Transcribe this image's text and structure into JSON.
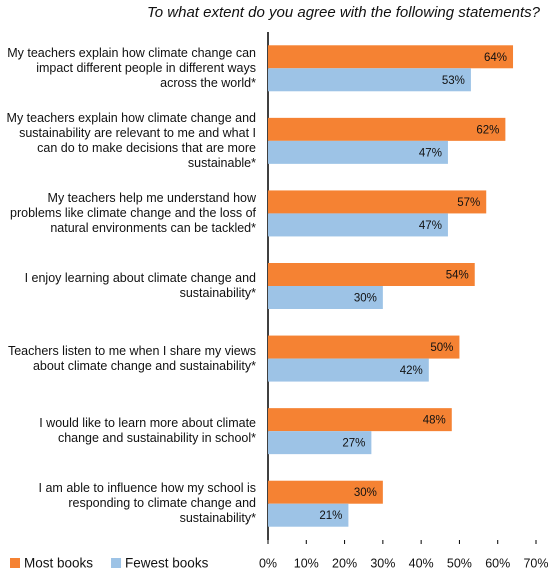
{
  "chart_data": {
    "type": "hbar",
    "title": "To what extent do you agree with the following statements?",
    "categories": [
      "My teachers explain how climate change can impact different people in different ways across the world*",
      "My teachers explain how climate change and sustainability are relevant to me and what I can do to make decisions that are more sustainable*",
      "My teachers help me understand how problems like climate change and the loss of natural environments can be tackled*",
      "I enjoy learning about climate change and sustainability*",
      "Teachers listen to me when I share my views about climate change and sustainability*",
      "I would like to learn more about climate change and sustainability in school*",
      "I am able to influence how my school is responding to climate change and sustainability*"
    ],
    "series": [
      {
        "name": "Most books",
        "color": "#f58233",
        "values": [
          64,
          62,
          57,
          54,
          50,
          48,
          30
        ],
        "value_labels": [
          "64%",
          "62%",
          "57%",
          "54%",
          "50%",
          "48%",
          "30%"
        ]
      },
      {
        "name": "Fewest books",
        "color": "#9dc3e6",
        "values": [
          53,
          47,
          47,
          30,
          42,
          27,
          21
        ],
        "value_labels": [
          "53%",
          "47%",
          "47%",
          "30%",
          "42%",
          "27%",
          "21%"
        ]
      }
    ],
    "xlim": [
      0,
      70
    ],
    "xticks": [
      {
        "value": 0,
        "label": "0%"
      },
      {
        "value": 10,
        "label": "10%"
      },
      {
        "value": 20,
        "label": "20%"
      },
      {
        "value": 30,
        "label": "30%"
      },
      {
        "value": 40,
        "label": "40%"
      },
      {
        "value": 50,
        "label": "50%"
      },
      {
        "value": 60,
        "label": "60%"
      },
      {
        "value": 70,
        "label": "70%"
      }
    ],
    "legend": "bottom-left"
  }
}
